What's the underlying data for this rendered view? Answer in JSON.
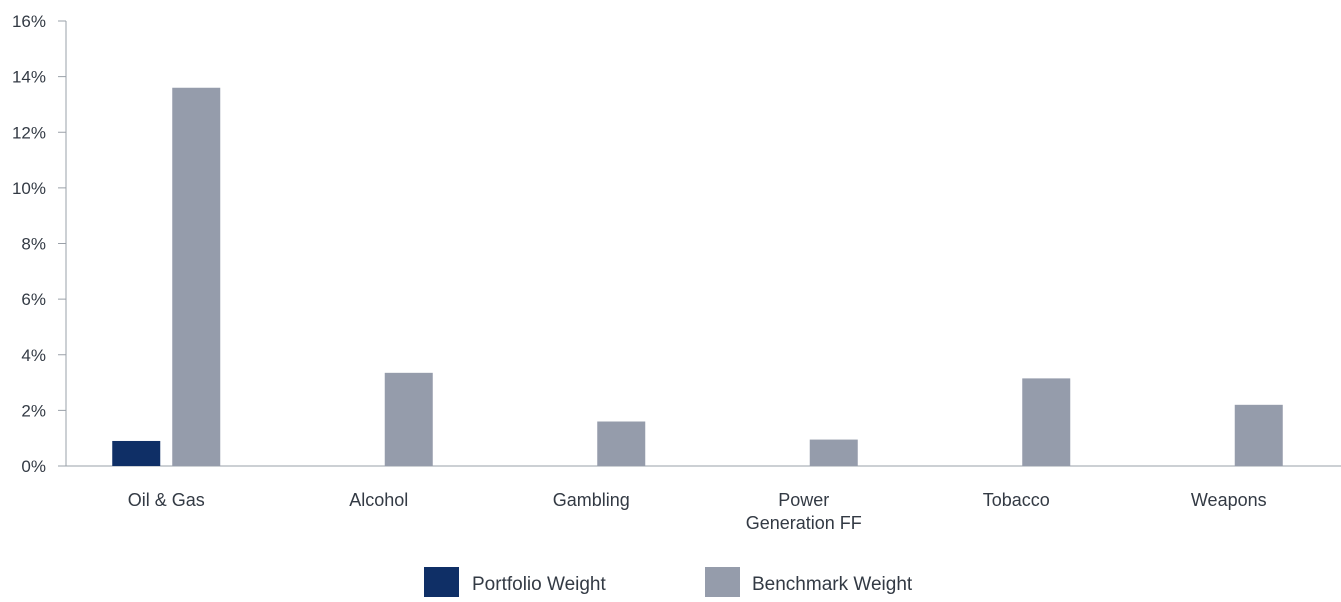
{
  "chart_data": {
    "type": "bar",
    "title": "",
    "xlabel": "",
    "ylabel": "",
    "ylim": [
      0,
      16
    ],
    "y_tick_labels": [
      "0%",
      "2%",
      "4%",
      "6%",
      "8%",
      "10%",
      "12%",
      "14%",
      "16%"
    ],
    "y_tick_values": [
      0,
      2,
      4,
      6,
      8,
      10,
      12,
      14,
      16
    ],
    "categories": [
      [
        "Oil & Gas"
      ],
      [
        "Alcohol"
      ],
      [
        "Gambling"
      ],
      [
        "Power",
        "Generation FF"
      ],
      [
        "Tobacco"
      ],
      [
        "Weapons"
      ]
    ],
    "series": [
      {
        "name": "Portfolio Weight",
        "color": "#0f2f66",
        "values": [
          0.9,
          0,
          0,
          0,
          0,
          0
        ]
      },
      {
        "name": "Benchmark Weight",
        "color": "#959cab",
        "values": [
          13.6,
          3.35,
          1.6,
          0.95,
          3.15,
          2.2
        ]
      }
    ],
    "legend": "bottom-center",
    "grid": false
  }
}
